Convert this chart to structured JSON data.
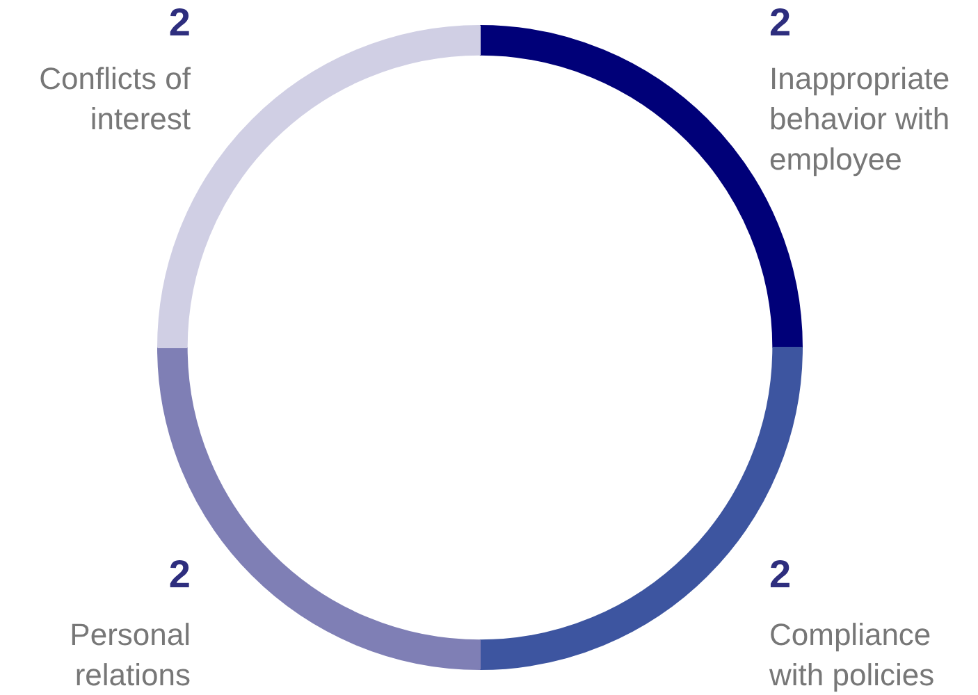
{
  "chart_data": {
    "type": "donut",
    "categories": [
      "Inappropriate behavior with employee",
      "Compliance with policies",
      "Personal relations",
      "Conflicts of interest"
    ],
    "values": [
      2,
      2,
      2,
      2
    ],
    "colors": [
      "#000078",
      "#3d55a0",
      "#7f7fb5",
      "#d0cfe4"
    ],
    "data_labels": true,
    "legend": false
  }
}
